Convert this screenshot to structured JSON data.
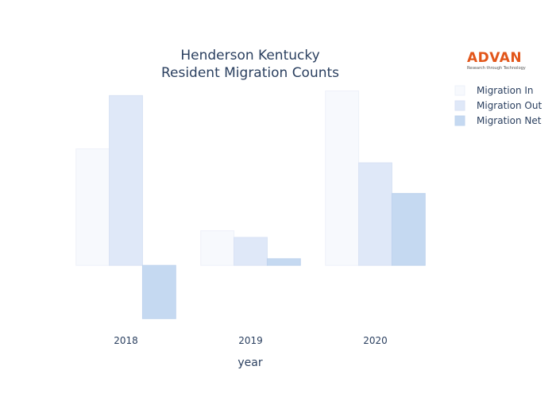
{
  "chart_data": {
    "type": "bar",
    "title_lines": [
      "Henderson Kentucky",
      "Resident Migration Counts"
    ],
    "xlabel": "year",
    "ylabel": "",
    "categories": [
      "2018",
      "2019",
      "2020"
    ],
    "series": [
      {
        "name": "Migration In",
        "values": [
          1750,
          520,
          2620
        ],
        "color": "#f7f9fd",
        "stroke": "#eef1f9"
      },
      {
        "name": "Migration Out",
        "values": [
          2550,
          420,
          1540
        ],
        "color": "#dfe8f8",
        "stroke": "#d8e2f4"
      },
      {
        "name": "Migration Net",
        "values": [
          -800,
          100,
          1080
        ],
        "color": "#c5d9f1",
        "stroke": "#c0d4ee"
      }
    ],
    "ylim": [
      -880,
      2650
    ],
    "grid": false,
    "y_tick_labels_shown": false,
    "legend_position": "top-right"
  },
  "logo": {
    "word": "ADVAN",
    "tagline": "Research through Technology",
    "color": "#e2561a"
  }
}
